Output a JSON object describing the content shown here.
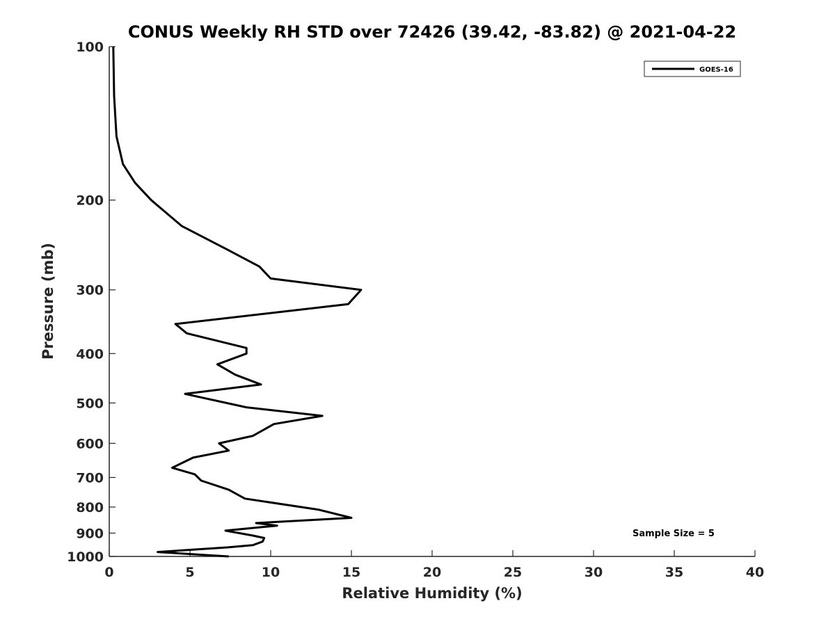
{
  "chart_data": {
    "type": "line",
    "title": "CONUS Weekly RH STD over 72426 (39.42, -83.82) @ 2021-04-22",
    "xlabel": "Relative Humidity (%)",
    "ylabel": "Pressure (mb)",
    "xlim": [
      0,
      40
    ],
    "ylim": [
      100,
      1000
    ],
    "yscale": "log",
    "y_reversed": true,
    "xticks": [
      0,
      5,
      10,
      15,
      20,
      25,
      30,
      35,
      40
    ],
    "yticks": [
      100,
      200,
      300,
      400,
      500,
      600,
      700,
      800,
      900,
      1000
    ],
    "grid": false,
    "legend_position": "top-right",
    "series": [
      {
        "name": "GOES-16",
        "color": "#000000",
        "x": [
          0.25,
          0.3,
          0.45,
          0.85,
          1.6,
          2.6,
          4.5,
          7.3,
          9.3,
          10.0,
          15.6,
          14.8,
          4.1,
          4.8,
          8.5,
          8.5,
          6.7,
          7.8,
          9.4,
          4.7,
          8.5,
          13.2,
          10.2,
          8.9,
          6.8,
          7.4,
          5.2,
          3.9,
          5.3,
          5.7,
          7.4,
          8.4,
          13.0,
          15.0,
          9.1,
          10.4,
          7.2,
          8.9,
          9.6,
          9.5,
          8.9,
          7.3,
          3.0,
          7.4
        ],
        "y": [
          100,
          125,
          150,
          170,
          185,
          200,
          225,
          250,
          270,
          285,
          300,
          320,
          350,
          365,
          390,
          400,
          420,
          440,
          460,
          480,
          510,
          530,
          550,
          580,
          600,
          620,
          640,
          670,
          690,
          710,
          740,
          770,
          810,
          840,
          860,
          870,
          890,
          910,
          920,
          935,
          950,
          960,
          980,
          1000
        ]
      }
    ],
    "annotations": [
      "Sample Size = 5"
    ]
  }
}
